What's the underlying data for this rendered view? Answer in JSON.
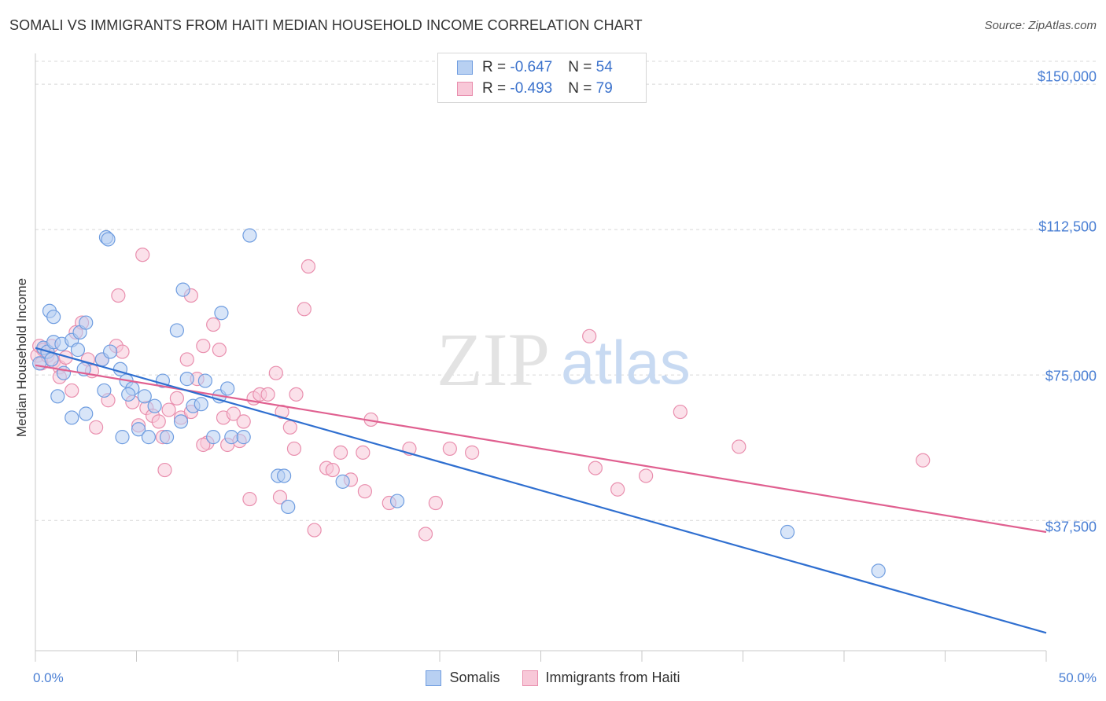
{
  "title": "SOMALI VS IMMIGRANTS FROM HAITI MEDIAN HOUSEHOLD INCOME CORRELATION CHART",
  "source": "Source: ZipAtlas.com",
  "watermark": {
    "zip": "ZIP",
    "atlas": "atlas"
  },
  "legend_top": [
    {
      "r_label": "R = ",
      "r_value": "-0.647",
      "n_label": "N = ",
      "n_value": "54"
    },
    {
      "r_label": "R = ",
      "r_value": "-0.493",
      "n_label": "N = ",
      "n_value": "79"
    }
  ],
  "legend_bottom": [
    "Somalis",
    "Immigrants from Haiti"
  ],
  "colors": {
    "somalis_fill": "#b8d0f2",
    "somalis_stroke": "#6f9de0",
    "somalis_line": "#2f6fd0",
    "haiti_fill": "#f8c8d8",
    "haiti_stroke": "#e98fae",
    "haiti_line": "#e06090",
    "grid": "#d8d8d8",
    "tick_label": "#4a7fd4"
  },
  "chart_data": {
    "type": "scatter",
    "title": "SOMALI VS IMMIGRANTS FROM HAITI MEDIAN HOUSEHOLD INCOME CORRELATION CHART",
    "xlabel": "",
    "ylabel": "Median Household Income",
    "x_unit": "percent",
    "xlim": [
      0,
      50
    ],
    "ylim": [
      3900,
      155900
    ],
    "x_tick_labels": [
      "0.0%",
      "50.0%"
    ],
    "y_ticks": [
      37500,
      75000,
      112500,
      150000
    ],
    "y_tick_labels": [
      "$37,500",
      "$75,000",
      "$112,500",
      "$150,000"
    ],
    "grid": "horizontal dashed",
    "legend_position": "top-center",
    "series": [
      {
        "name": "Somalis",
        "r": -0.647,
        "n": 54,
        "trend": [
          [
            0.0,
            82000
          ],
          [
            50.0,
            8500
          ]
        ],
        "points": [
          [
            0.2,
            78000
          ],
          [
            0.4,
            82000
          ],
          [
            0.6,
            81000
          ],
          [
            0.8,
            79000
          ],
          [
            0.9,
            83500
          ],
          [
            0.7,
            91500
          ],
          [
            0.9,
            90000
          ],
          [
            1.3,
            83000
          ],
          [
            1.4,
            75500
          ],
          [
            1.8,
            84000
          ],
          [
            2.1,
            81500
          ],
          [
            2.2,
            86000
          ],
          [
            2.5,
            88500
          ],
          [
            2.4,
            76500
          ],
          [
            3.3,
            79000
          ],
          [
            3.4,
            71000
          ],
          [
            3.7,
            81000
          ],
          [
            4.2,
            76500
          ],
          [
            4.5,
            73500
          ],
          [
            4.8,
            71500
          ],
          [
            4.6,
            70000
          ],
          [
            5.1,
            61000
          ],
          [
            5.6,
            59000
          ],
          [
            5.9,
            67000
          ],
          [
            6.3,
            73500
          ],
          [
            6.5,
            59000
          ],
          [
            7.0,
            86500
          ],
          [
            7.2,
            63000
          ],
          [
            7.5,
            74000
          ],
          [
            7.8,
            67000
          ],
          [
            8.2,
            67500
          ],
          [
            8.4,
            73500
          ],
          [
            8.8,
            59000
          ],
          [
            9.1,
            69500
          ],
          [
            9.2,
            91000
          ],
          [
            9.5,
            71500
          ],
          [
            9.7,
            59000
          ],
          [
            10.3,
            59000
          ],
          [
            1.8,
            64000
          ],
          [
            2.5,
            65000
          ],
          [
            3.5,
            110500
          ],
          [
            3.6,
            110000
          ],
          [
            4.3,
            59000
          ],
          [
            5.4,
            69500
          ],
          [
            7.3,
            97000
          ],
          [
            10.6,
            111000
          ],
          [
            12.0,
            49000
          ],
          [
            12.3,
            49000
          ],
          [
            12.5,
            41000
          ],
          [
            15.2,
            47500
          ],
          [
            17.9,
            42500
          ],
          [
            1.1,
            69500
          ],
          [
            37.2,
            34500
          ],
          [
            41.7,
            24500
          ]
        ]
      },
      {
        "name": "Immigrants from Haiti",
        "r": -0.493,
        "n": 79,
        "trend": [
          [
            0.0,
            77500
          ],
          [
            50.0,
            34500
          ]
        ],
        "points": [
          [
            0.1,
            80000
          ],
          [
            0.2,
            82500
          ],
          [
            0.3,
            78000
          ],
          [
            0.4,
            81500
          ],
          [
            0.6,
            80000
          ],
          [
            0.8,
            82500
          ],
          [
            0.9,
            78500
          ],
          [
            1.2,
            77000
          ],
          [
            1.5,
            79500
          ],
          [
            1.8,
            71000
          ],
          [
            2.0,
            86000
          ],
          [
            2.3,
            88500
          ],
          [
            2.6,
            79000
          ],
          [
            2.8,
            76000
          ],
          [
            3.0,
            61500
          ],
          [
            3.3,
            79000
          ],
          [
            3.6,
            68500
          ],
          [
            4.0,
            82500
          ],
          [
            4.3,
            81000
          ],
          [
            4.8,
            68000
          ],
          [
            5.1,
            62000
          ],
          [
            5.5,
            66500
          ],
          [
            5.8,
            64500
          ],
          [
            6.1,
            63000
          ],
          [
            6.3,
            59000
          ],
          [
            6.6,
            66000
          ],
          [
            7.0,
            69000
          ],
          [
            7.2,
            64000
          ],
          [
            7.5,
            79000
          ],
          [
            7.7,
            65500
          ],
          [
            8.0,
            74000
          ],
          [
            8.3,
            82500
          ],
          [
            8.5,
            57500
          ],
          [
            8.8,
            88000
          ],
          [
            9.1,
            81500
          ],
          [
            9.3,
            64000
          ],
          [
            9.5,
            57000
          ],
          [
            9.8,
            65000
          ],
          [
            10.1,
            58000
          ],
          [
            10.3,
            63000
          ],
          [
            10.8,
            69000
          ],
          [
            11.1,
            70000
          ],
          [
            11.5,
            70000
          ],
          [
            11.9,
            75500
          ],
          [
            12.2,
            65500
          ],
          [
            12.6,
            61500
          ],
          [
            12.9,
            70000
          ],
          [
            13.3,
            92000
          ],
          [
            13.8,
            35000
          ],
          [
            14.4,
            51000
          ],
          [
            14.7,
            50500
          ],
          [
            15.1,
            55000
          ],
          [
            15.6,
            48000
          ],
          [
            16.2,
            55000
          ],
          [
            16.6,
            63500
          ],
          [
            17.5,
            42000
          ],
          [
            18.5,
            56000
          ],
          [
            19.3,
            34000
          ],
          [
            19.8,
            42000
          ],
          [
            20.5,
            56000
          ],
          [
            21.6,
            55000
          ],
          [
            27.4,
            85000
          ],
          [
            27.7,
            51000
          ],
          [
            28.8,
            45500
          ],
          [
            30.2,
            49000
          ],
          [
            31.9,
            65500
          ],
          [
            34.8,
            56500
          ],
          [
            43.9,
            53000
          ],
          [
            6.4,
            50500
          ],
          [
            8.3,
            57000
          ],
          [
            10.6,
            43000
          ],
          [
            12.1,
            43500
          ],
          [
            7.7,
            95500
          ],
          [
            12.8,
            56000
          ],
          [
            13.5,
            103000
          ],
          [
            5.3,
            106000
          ],
          [
            4.1,
            95500
          ],
          [
            1.2,
            74500
          ],
          [
            16.3,
            45000
          ]
        ]
      }
    ]
  }
}
